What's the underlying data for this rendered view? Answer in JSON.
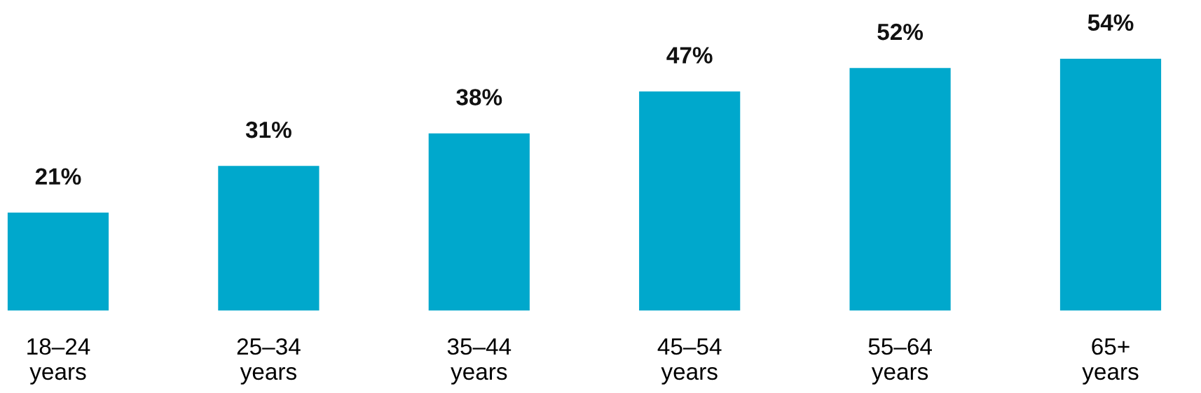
{
  "chart_data": {
    "type": "bar",
    "categories": [
      "18–24\nyears",
      "25–34\nyears",
      "35–44\nyears",
      "45–54\nyears",
      "55–64\nyears",
      "65+\nyears"
    ],
    "values": [
      21,
      31,
      38,
      47,
      52,
      54
    ],
    "value_labels": [
      "21%",
      "31%",
      "38%",
      "47%",
      "52%",
      "54%"
    ],
    "color": "#00a8cc",
    "grid": false,
    "legend": false
  }
}
